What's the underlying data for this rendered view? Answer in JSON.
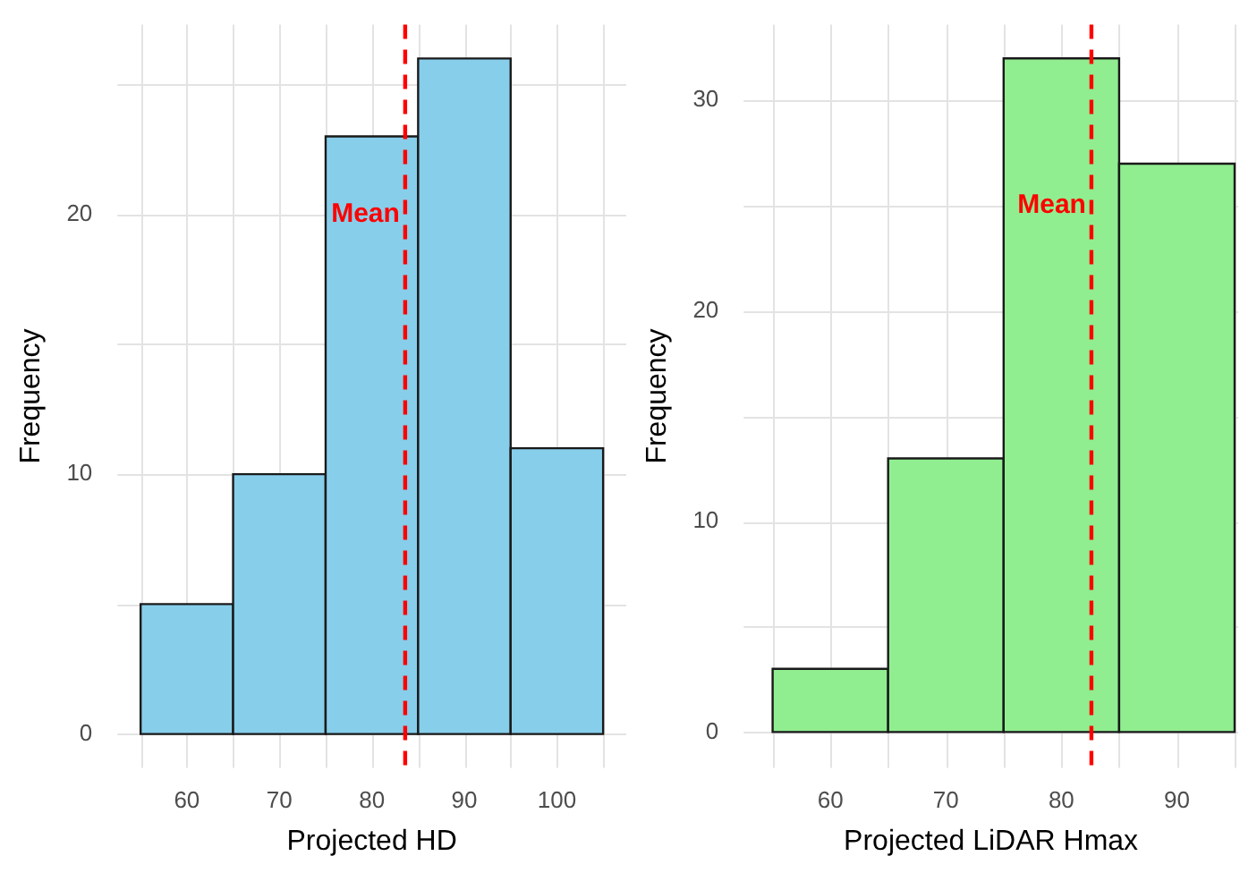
{
  "chart_data": [
    {
      "type": "histogram",
      "xlabel": "Projected HD",
      "ylabel": "Frequency",
      "bins": [
        55,
        65,
        75,
        85,
        95,
        105
      ],
      "values": [
        5,
        10,
        23,
        26,
        11
      ],
      "color": "#87ceeb",
      "xlim": [
        52.5,
        107.5
      ],
      "ylim": [
        -1.3,
        27.3
      ],
      "xticks": [
        {
          "value": 55,
          "label": null
        },
        60,
        {
          "value": 65,
          "label": null
        },
        70,
        {
          "value": 75,
          "label": null
        },
        80,
        {
          "value": 85,
          "label": null
        },
        90,
        {
          "value": 95,
          "label": null
        },
        100,
        {
          "value": 105,
          "label": null
        }
      ],
      "yticks": [
        0,
        {
          "value": 5,
          "label": null
        },
        10,
        {
          "value": 15,
          "label": null
        },
        20,
        {
          "value": 25,
          "label": null
        }
      ],
      "grid": true,
      "ref_lines": [
        {
          "axis": "x",
          "value": 83.6,
          "color": "#ff0000",
          "line_style": "dashed"
        }
      ],
      "annotations": [
        {
          "text": "Mean",
          "x": 83.6,
          "y": 20
        }
      ]
    },
    {
      "type": "histogram",
      "xlabel": "Projected LiDAR Hmax",
      "ylabel": "Frequency",
      "bins": [
        55,
        65,
        75,
        85,
        95
      ],
      "values": [
        3,
        13,
        32,
        27
      ],
      "color": "#90ee90",
      "xlim": [
        52.5,
        95.3
      ],
      "ylim": [
        -1.7,
        33.6
      ],
      "xticks": [
        {
          "value": 55,
          "label": null
        },
        60,
        {
          "value": 65,
          "label": null
        },
        70,
        {
          "value": 75,
          "label": null
        },
        80,
        {
          "value": 85,
          "label": null
        },
        90,
        {
          "value": 95,
          "label": null
        }
      ],
      "yticks": [
        0,
        {
          "value": 5,
          "label": null
        },
        10,
        {
          "value": 15,
          "label": null
        },
        20,
        {
          "value": 25,
          "label": null
        },
        30
      ],
      "grid": true,
      "ref_lines": [
        {
          "axis": "x",
          "value": 82.6,
          "color": "#ff0000",
          "line_style": "dashed"
        }
      ],
      "annotations": [
        {
          "text": "Mean",
          "x": 82.6,
          "y": 25
        }
      ]
    }
  ]
}
